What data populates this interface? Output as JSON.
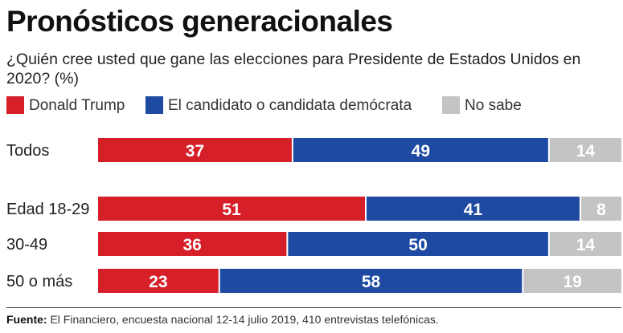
{
  "title": "Pronósticos generacionales",
  "subtitle": "¿Quién cree usted que gane las elecciones para Presidente de Estados Unidos en 2020? (%)",
  "legend": [
    {
      "label": "Donald Trump",
      "color": "#d71f2a"
    },
    {
      "label": "El candidato o candidata demócrata",
      "color": "#1e4aa2"
    },
    {
      "label": "No sabe",
      "color": "#c4c4c4"
    }
  ],
  "chart_data": {
    "type": "bar",
    "orientation": "horizontal",
    "stacked": true,
    "categories": [
      "Todos",
      "Edad 18-29",
      "30-49",
      "50 o más"
    ],
    "series": [
      {
        "name": "Donald Trump",
        "color": "#d71f2a",
        "values": [
          37,
          51,
          36,
          23
        ]
      },
      {
        "name": "El candidato o candidata demócrata",
        "color": "#1e4aa2",
        "values": [
          49,
          41,
          50,
          58
        ]
      },
      {
        "name": "No sabe",
        "color": "#c4c4c4",
        "values": [
          14,
          8,
          14,
          19
        ]
      }
    ],
    "xlim": [
      0,
      100
    ],
    "legend_position": "top",
    "grid": false
  },
  "source": {
    "label": "Fuente:",
    "text": " El Financiero, encuesta nacional 12-14 julio 2019, 410 entrevistas telefónicas."
  }
}
